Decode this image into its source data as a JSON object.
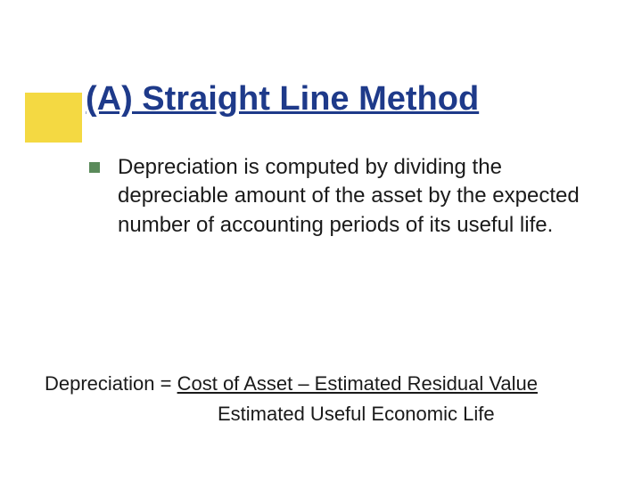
{
  "accent_box_color": "#f4d942",
  "title": {
    "text": "(A) Straight Line Method",
    "color": "#1e3a8a",
    "font_size": 38,
    "font_weight": "bold",
    "underline": true
  },
  "bullet": {
    "color": "#5a8a5a",
    "size": 12
  },
  "body": {
    "text": "Depreciation is computed by dividing the depreciable amount of the asset by the expected number of accounting periods of its useful life.",
    "font_size": 24,
    "color": "#1a1a1a"
  },
  "formula": {
    "label": "Depreciation = ",
    "numerator": "Cost of Asset – Estimated Residual Value",
    "denominator": "Estimated Useful Economic Life",
    "font_family": "Arial",
    "font_size": 22,
    "color": "#1a1a1a"
  },
  "background_color": "#ffffff"
}
